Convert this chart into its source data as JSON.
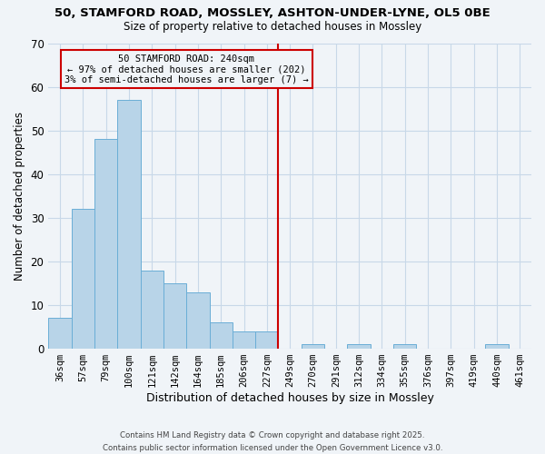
{
  "title_line1": "50, STAMFORD ROAD, MOSSLEY, ASHTON-UNDER-LYNE, OL5 0BE",
  "title_line2": "Size of property relative to detached houses in Mossley",
  "xlabel": "Distribution of detached houses by size in Mossley",
  "ylabel": "Number of detached properties",
  "bin_labels": [
    "36sqm",
    "57sqm",
    "79sqm",
    "100sqm",
    "121sqm",
    "142sqm",
    "164sqm",
    "185sqm",
    "206sqm",
    "227sqm",
    "249sqm",
    "270sqm",
    "291sqm",
    "312sqm",
    "334sqm",
    "355sqm",
    "376sqm",
    "397sqm",
    "419sqm",
    "440sqm",
    "461sqm"
  ],
  "bin_values": [
    7,
    32,
    48,
    57,
    18,
    15,
    13,
    6,
    4,
    4,
    0,
    1,
    0,
    1,
    0,
    1,
    0,
    0,
    0,
    1,
    0
  ],
  "bar_color": "#b8d4e8",
  "bar_edge_color": "#6aaed6",
  "ylim": [
    0,
    70
  ],
  "yticks": [
    0,
    10,
    20,
    30,
    40,
    50,
    60,
    70
  ],
  "vline_x": 10.0,
  "vline_color": "#cc0000",
  "annotation_title": "50 STAMFORD ROAD: 240sqm",
  "annotation_line1": "← 97% of detached houses are smaller (202)",
  "annotation_line2": "3% of semi-detached houses are larger (7) →",
  "annotation_box_color": "#cc0000",
  "footer_line1": "Contains HM Land Registry data © Crown copyright and database right 2025.",
  "footer_line2": "Contains public sector information licensed under the Open Government Licence v3.0.",
  "bg_color": "#f0f4f8",
  "grid_color": "#c8d8e8"
}
